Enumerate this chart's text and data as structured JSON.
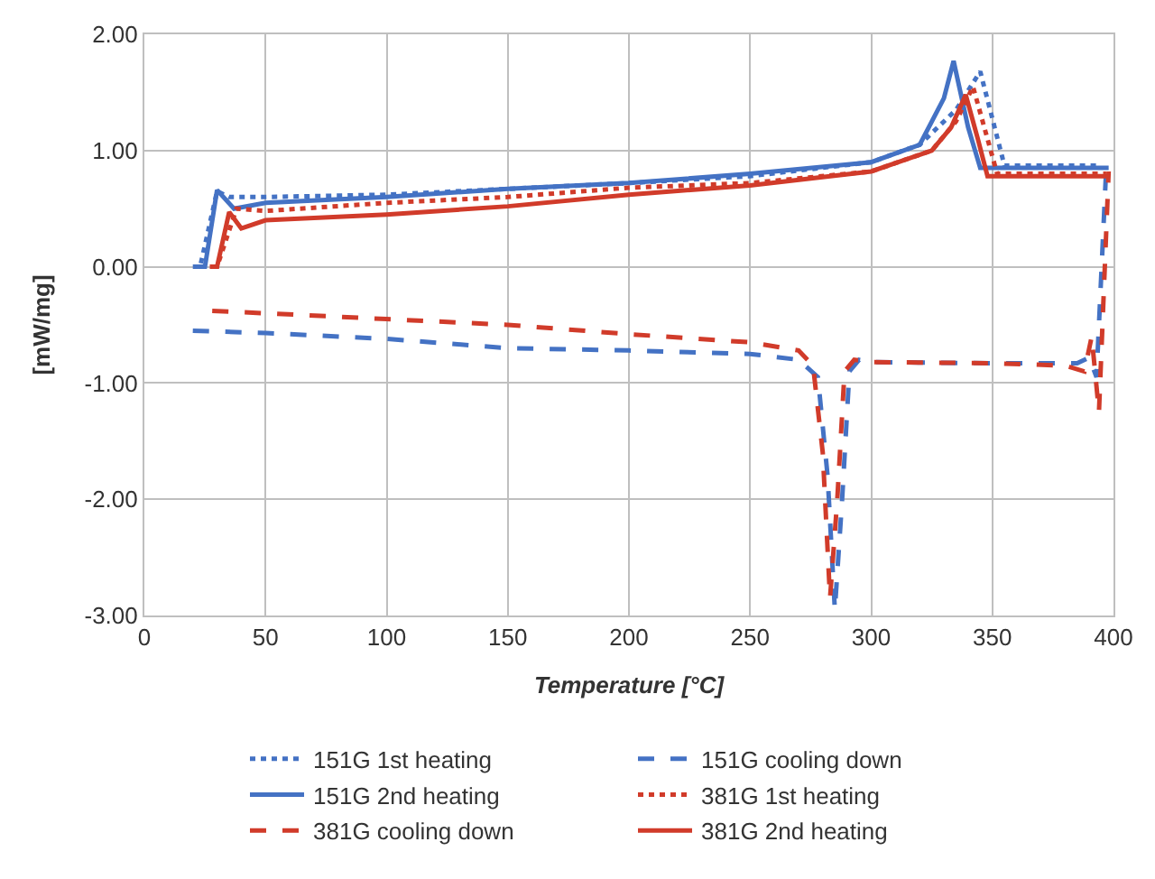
{
  "chart_data": {
    "type": "line",
    "xlabel": "Temperature [°C]",
    "ylabel": "[mW/mg]",
    "xlim": [
      0,
      400
    ],
    "xticks": [
      0,
      50,
      100,
      150,
      200,
      250,
      300,
      350,
      400
    ],
    "ylim": [
      -3,
      2
    ],
    "yticks": [
      {
        "value": -3,
        "label": "-3.00"
      },
      {
        "value": -2,
        "label": "-2.00"
      },
      {
        "value": -1,
        "label": "-1.00"
      },
      {
        "value": 0,
        "label": "0.00"
      },
      {
        "value": 1,
        "label": "1.00"
      },
      {
        "value": 2,
        "label": "2.00"
      }
    ],
    "grid": true,
    "legend": "bottom",
    "marker": "none",
    "series": [
      {
        "name": "151G 1st heating",
        "color": "#4472c4",
        "line_style": "dotted",
        "x": [
          20,
          23,
          30,
          35,
          40,
          50,
          100,
          150,
          200,
          250,
          300,
          320,
          335,
          345,
          355,
          370,
          395
        ],
        "values": [
          0,
          0,
          0.65,
          0.6,
          0.6,
          0.6,
          0.62,
          0.67,
          0.72,
          0.78,
          0.9,
          1.05,
          1.35,
          1.68,
          0.87,
          0.87,
          0.87
        ]
      },
      {
        "name": "151G cooling down",
        "color": "#4472c4",
        "line_style": "dashed",
        "x": [
          20,
          50,
          100,
          150,
          200,
          250,
          270,
          278,
          282,
          285,
          288,
          291,
          295,
          300,
          350,
          385,
          390,
          393,
          397
        ],
        "values": [
          -0.55,
          -0.57,
          -0.62,
          -0.7,
          -0.72,
          -0.75,
          -0.8,
          -0.95,
          -1.8,
          -2.95,
          -2.0,
          -0.9,
          -0.8,
          -0.82,
          -0.83,
          -0.83,
          -0.78,
          -0.95,
          0.85
        ]
      },
      {
        "name": "151G 2nd heating",
        "color": "#4472c4",
        "line_style": "solid",
        "x": [
          22,
          25,
          30,
          37,
          50,
          100,
          150,
          200,
          250,
          300,
          320,
          330,
          334,
          340,
          345,
          370,
          398
        ],
        "values": [
          0,
          0,
          0.66,
          0.5,
          0.55,
          0.6,
          0.67,
          0.72,
          0.8,
          0.9,
          1.05,
          1.45,
          1.77,
          1.2,
          0.85,
          0.85,
          0.85
        ]
      },
      {
        "name": "381G 1st heating",
        "color": "#d13b2a",
        "line_style": "dotted",
        "x": [
          28,
          30,
          38,
          50,
          100,
          150,
          200,
          250,
          300,
          325,
          335,
          342,
          352,
          370,
          397
        ],
        "values": [
          0,
          0,
          0.5,
          0.48,
          0.55,
          0.6,
          0.68,
          0.72,
          0.82,
          1.0,
          1.25,
          1.55,
          0.8,
          0.8,
          0.8
        ]
      },
      {
        "name": "381G cooling down",
        "color": "#d13b2a",
        "line_style": "dashed",
        "x": [
          28,
          50,
          100,
          150,
          200,
          250,
          270,
          276,
          280,
          283,
          286,
          289,
          293,
          300,
          350,
          380,
          388,
          391,
          394,
          398
        ],
        "values": [
          -0.38,
          -0.4,
          -0.45,
          -0.5,
          -0.58,
          -0.65,
          -0.72,
          -0.85,
          -1.6,
          -2.85,
          -2.0,
          -0.9,
          -0.8,
          -0.82,
          -0.83,
          -0.85,
          -0.9,
          -0.6,
          -1.25,
          0.82
        ]
      },
      {
        "name": "381G 2nd heating",
        "color": "#d13b2a",
        "line_style": "solid",
        "x": [
          27,
          30,
          35,
          40,
          50,
          100,
          150,
          200,
          250,
          300,
          325,
          333,
          339,
          344,
          348,
          370,
          397
        ],
        "values": [
          0,
          0,
          0.47,
          0.33,
          0.4,
          0.45,
          0.52,
          0.62,
          0.7,
          0.82,
          1.0,
          1.2,
          1.48,
          1.1,
          0.78,
          0.78,
          0.78
        ]
      }
    ]
  }
}
